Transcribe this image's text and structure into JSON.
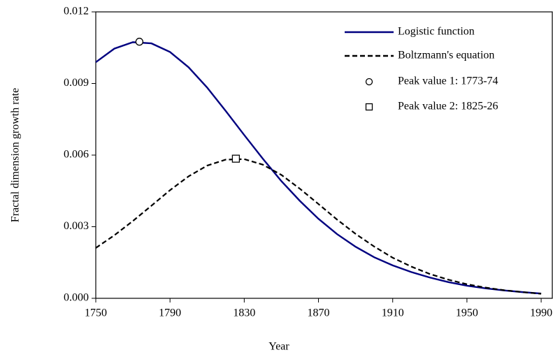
{
  "chart_data": {
    "type": "line",
    "x_label": "Year",
    "y_label": "Fractal dimension growth rate",
    "x": [
      1750,
      1760,
      1770,
      1780,
      1790,
      1800,
      1810,
      1820,
      1830,
      1840,
      1850,
      1860,
      1870,
      1880,
      1890,
      1900,
      1910,
      1920,
      1930,
      1940,
      1950,
      1960,
      1970,
      1980,
      1990
    ],
    "series": [
      {
        "name": "Logistic function",
        "color": "#000080",
        "style": "solid",
        "values": [
          0.00989,
          0.01046,
          0.01073,
          0.01068,
          0.01032,
          0.00968,
          0.00883,
          0.00785,
          0.00684,
          0.00585,
          0.00491,
          0.00408,
          0.00333,
          0.00269,
          0.00216,
          0.00172,
          0.00138,
          0.0011,
          0.00087,
          0.00068,
          0.00053,
          0.00042,
          0.00033,
          0.00026,
          0.0002
        ]
      },
      {
        "name": "Boltzmann's equation",
        "color": "#000000",
        "style": "dashed",
        "values": [
          0.00211,
          0.00264,
          0.00324,
          0.00388,
          0.00453,
          0.00511,
          0.00556,
          0.00581,
          0.00583,
          0.0056,
          0.00517,
          0.00459,
          0.00395,
          0.0033,
          0.0027,
          0.00217,
          0.0017,
          0.00133,
          0.00102,
          0.00078,
          0.00059,
          0.00045,
          0.00034,
          0.00026,
          0.00019
        ]
      },
      {
        "name": "Peak value 1: 1773-74",
        "color": "#000000",
        "marker": "circle",
        "x": [
          1773.5
        ],
        "values": [
          0.01075
        ]
      },
      {
        "name": "Peak value 2: 1825-26",
        "color": "#000000",
        "marker": "square",
        "x": [
          1825.5
        ],
        "values": [
          0.00585
        ]
      }
    ],
    "xlim": [
      1750,
      1996
    ],
    "xticks": [
      1750,
      1790,
      1830,
      1870,
      1910,
      1950,
      1990
    ],
    "ylim": [
      0,
      0.012
    ],
    "yticks": [
      {
        "value": 0,
        "label": "0.000"
      },
      {
        "value": 0.003,
        "label": "0.003"
      },
      {
        "value": 0.006,
        "label": "0.006"
      },
      {
        "value": 0.009,
        "label": "0.009"
      },
      {
        "value": 0.012,
        "label": "0.012"
      }
    ],
    "legend": "upper right"
  }
}
